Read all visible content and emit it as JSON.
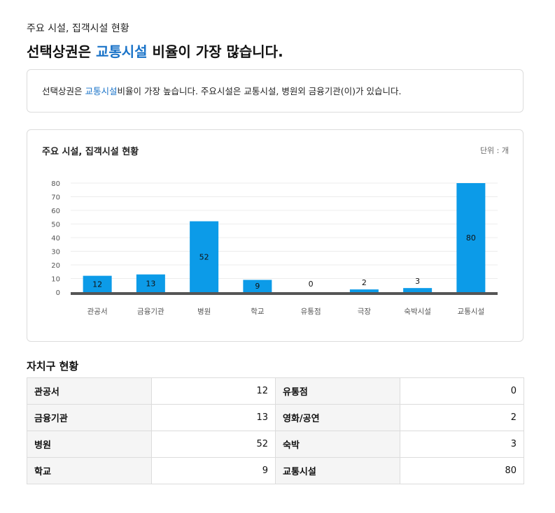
{
  "header": {
    "subtitle": "주요 시설, 집객시설 현황",
    "headline_pre": "선택상권은 ",
    "headline_hl": "교통시설",
    "headline_post": " 비율이 가장 많습니다."
  },
  "summary": {
    "pre": "선택상권은 ",
    "hl": "교통시설",
    "post": "비율이 가장 높습니다. 주요시설은 교통시설, 병원외 금융기관(이)가 있습니다."
  },
  "chart_box": {
    "title": "주요 시설, 집객시설 현황",
    "unit": "단위 : 개"
  },
  "chart_data": {
    "type": "bar",
    "categories": [
      "관공서",
      "금융기관",
      "병원",
      "학교",
      "유통점",
      "극장",
      "숙박시설",
      "교통시설"
    ],
    "values": [
      12,
      13,
      52,
      9,
      0,
      2,
      3,
      80
    ],
    "ylim": [
      0,
      80
    ],
    "yticks": [
      0,
      10,
      20,
      30,
      40,
      50,
      60,
      70,
      80
    ],
    "bar_color": "#0c9be8",
    "baseline_color": "#555555",
    "grid": true
  },
  "table": {
    "title": "자치구 현황",
    "rows": [
      {
        "l1": "관공서",
        "v1": "12",
        "l2": "유통점",
        "v2": "0"
      },
      {
        "l1": "금융기관",
        "v1": "13",
        "l2": "영화/공연",
        "v2": "2"
      },
      {
        "l1": "병원",
        "v1": "52",
        "l2": "숙박",
        "v2": "3"
      },
      {
        "l1": "학교",
        "v1": "9",
        "l2": "교통시설",
        "v2": "80"
      }
    ]
  }
}
